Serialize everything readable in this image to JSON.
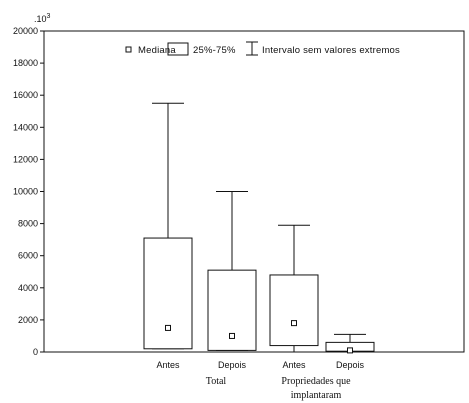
{
  "chart_data": {
    "type": "box",
    "multiplier_label": ".10",
    "multiplier_exp": "3",
    "ylim": [
      0,
      20000
    ],
    "yticks": [
      0,
      2000,
      4000,
      6000,
      8000,
      10000,
      12000,
      14000,
      16000,
      18000,
      20000
    ],
    "ytick_labels": [
      "0",
      "2000",
      "4000",
      "6000",
      "8000",
      "10000",
      "12000",
      "14000",
      "16000",
      "18000",
      "20000"
    ],
    "legend": {
      "median": "Mediana",
      "box": "25%-75%",
      "whisker": "Intervalo sem valores extremos"
    },
    "boxes": [
      {
        "label": "Antes",
        "median": 1500,
        "q1": 200,
        "q3": 7100,
        "min": 200,
        "max": 15500
      },
      {
        "label": "Depois",
        "median": 1000,
        "q1": 100,
        "q3": 5100,
        "min": 100,
        "max": 10000
      },
      {
        "label": "Antes",
        "median": 1800,
        "q1": 400,
        "q3": 4800,
        "min": 0,
        "max": 7900
      },
      {
        "label": "Depois",
        "median": 100,
        "q1": 50,
        "q3": 600,
        "min": 0,
        "max": 1100
      }
    ],
    "groups": [
      {
        "label": "Total",
        "box_indices": [
          0,
          1
        ]
      },
      {
        "label_line1": "Propriedades que",
        "label_line2": "implantaram",
        "box_indices": [
          2,
          3
        ]
      }
    ]
  }
}
